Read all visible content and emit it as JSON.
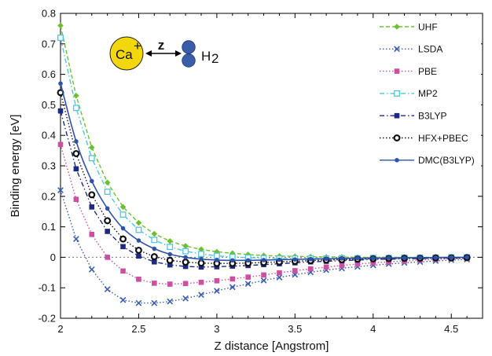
{
  "chart_data": {
    "type": "line",
    "title": "",
    "xlabel": "Z distance [Angstrom]",
    "ylabel": "Binding energy [eV]",
    "xlim": [
      2.0,
      4.7
    ],
    "ylim": [
      -0.2,
      0.8
    ],
    "xticks": [
      2,
      2.5,
      3,
      3.5,
      4,
      4.5
    ],
    "xtick_labels": [
      "2",
      "2.5",
      "3",
      "3.5",
      "4",
      "4.5"
    ],
    "yticks": [
      -0.2,
      -0.1,
      0,
      0.1,
      0.2,
      0.3,
      0.4,
      0.5,
      0.6,
      0.7,
      0.8
    ],
    "ytick_labels": [
      "-0.2",
      "-0.1",
      "0",
      "0.1",
      "0.2",
      "0.3",
      "0.4",
      "0.5",
      "0.6",
      "0.7",
      "0.8"
    ],
    "grid": false,
    "zero_line": true,
    "legend_position": "top-right",
    "inset": {
      "ion_label": "Ca",
      "ion_charge": "+",
      "distance_label": "z",
      "molecule_label": "H",
      "molecule_subscript": "2",
      "ion_color": "#f2d70c",
      "molecule_color": "#3b5ca6"
    },
    "series": [
      {
        "name": "UHF",
        "color": "#6cbf2e",
        "line_style": "dashed",
        "marker": "diamond",
        "x": [
          2.0,
          2.1,
          2.2,
          2.3,
          2.4,
          2.5,
          2.6,
          2.7,
          2.8,
          2.9,
          3.0,
          3.1,
          3.2,
          3.3,
          3.4,
          3.5,
          3.6,
          3.7,
          3.8,
          3.9,
          4.0,
          4.1,
          4.2,
          4.3,
          4.4,
          4.5,
          4.6
        ],
        "y": [
          0.76,
          0.53,
          0.36,
          0.245,
          0.165,
          0.113,
          0.077,
          0.053,
          0.037,
          0.026,
          0.018,
          0.013,
          0.009,
          0.006,
          0.004,
          0.003,
          0.002,
          0.001,
          0.001,
          0.0,
          0.0,
          0.0,
          0.0,
          0.0,
          0.0,
          0.0,
          0.0
        ]
      },
      {
        "name": "LSDA",
        "color": "#3a5dae",
        "line_style": "dotted",
        "marker": "x",
        "x": [
          2.0,
          2.1,
          2.2,
          2.3,
          2.4,
          2.5,
          2.6,
          2.7,
          2.8,
          2.9,
          3.0,
          3.1,
          3.2,
          3.3,
          3.4,
          3.5,
          3.6,
          3.7,
          3.8,
          3.9,
          4.0,
          4.1,
          4.2,
          4.3,
          4.4,
          4.5,
          4.6
        ],
        "y": [
          0.22,
          0.06,
          -0.04,
          -0.105,
          -0.14,
          -0.15,
          -0.15,
          -0.145,
          -0.135,
          -0.123,
          -0.11,
          -0.098,
          -0.087,
          -0.076,
          -0.066,
          -0.057,
          -0.049,
          -0.042,
          -0.036,
          -0.031,
          -0.026,
          -0.022,
          -0.018,
          -0.015,
          -0.012,
          -0.009,
          -0.007
        ]
      },
      {
        "name": "PBE",
        "color": "#cc4fa0",
        "line_style": "dotted",
        "marker": "square",
        "x": [
          2.0,
          2.1,
          2.2,
          2.3,
          2.4,
          2.5,
          2.6,
          2.7,
          2.8,
          2.9,
          3.0,
          3.1,
          3.2,
          3.3,
          3.4,
          3.5,
          3.6,
          3.7,
          3.8,
          3.9,
          4.0,
          4.1,
          4.2,
          4.3,
          4.4,
          4.5,
          4.6
        ],
        "y": [
          0.37,
          0.19,
          0.075,
          0.0,
          -0.045,
          -0.072,
          -0.085,
          -0.088,
          -0.086,
          -0.082,
          -0.077,
          -0.071,
          -0.065,
          -0.058,
          -0.051,
          -0.044,
          -0.038,
          -0.032,
          -0.027,
          -0.022,
          -0.018,
          -0.015,
          -0.012,
          -0.009,
          -0.007,
          -0.005,
          -0.004
        ]
      },
      {
        "name": "MP2",
        "color": "#52c4e0",
        "line_style": "dashdot",
        "marker": "square-open",
        "x": [
          2.0,
          2.1,
          2.2,
          2.3,
          2.4,
          2.5,
          2.6,
          2.7,
          2.8,
          2.9,
          3.0,
          3.1,
          3.2,
          3.3,
          3.4,
          3.5,
          3.6,
          3.7,
          3.8,
          3.9,
          4.0,
          4.1,
          4.2,
          4.3,
          4.4,
          4.5,
          4.6
        ],
        "y": [
          0.72,
          0.49,
          0.325,
          0.215,
          0.14,
          0.09,
          0.057,
          0.034,
          0.02,
          0.011,
          0.005,
          0.001,
          -0.001,
          -0.003,
          -0.004,
          -0.004,
          -0.004,
          -0.004,
          -0.003,
          -0.003,
          -0.002,
          -0.002,
          -0.001,
          -0.001,
          -0.001,
          0.0,
          0.0
        ]
      },
      {
        "name": "B3LYP",
        "color": "#1d2a80",
        "line_style": "dashdot",
        "marker": "square",
        "x": [
          2.0,
          2.1,
          2.2,
          2.3,
          2.4,
          2.5,
          2.6,
          2.7,
          2.8,
          2.9,
          3.0,
          3.1,
          3.2,
          3.3,
          3.4,
          3.5,
          3.6,
          3.7,
          3.8,
          3.9,
          4.0,
          4.1,
          4.2,
          4.3,
          4.4,
          4.5,
          4.6
        ],
        "y": [
          0.48,
          0.29,
          0.165,
          0.085,
          0.035,
          0.004,
          -0.015,
          -0.025,
          -0.03,
          -0.032,
          -0.031,
          -0.029,
          -0.027,
          -0.024,
          -0.021,
          -0.018,
          -0.015,
          -0.013,
          -0.011,
          -0.009,
          -0.007,
          -0.006,
          -0.005,
          -0.004,
          -0.003,
          -0.002,
          -0.002
        ]
      },
      {
        "name": "HFX+PBEC",
        "color": "#111111",
        "line_style": "dotted",
        "marker": "circle-open-thick",
        "x": [
          2.0,
          2.1,
          2.2,
          2.3,
          2.4,
          2.5,
          2.6,
          2.7,
          2.8,
          2.9,
          3.0,
          3.1,
          3.2,
          3.3,
          3.4,
          3.5,
          3.6,
          3.7,
          3.8,
          3.9,
          4.0,
          4.1,
          4.2,
          4.3,
          4.4,
          4.5,
          4.6
        ],
        "y": [
          0.54,
          0.34,
          0.205,
          0.12,
          0.06,
          0.023,
          0.002,
          -0.01,
          -0.016,
          -0.019,
          -0.02,
          -0.02,
          -0.019,
          -0.017,
          -0.015,
          -0.013,
          -0.011,
          -0.009,
          -0.008,
          -0.006,
          -0.005,
          -0.004,
          -0.003,
          -0.003,
          -0.002,
          -0.002,
          -0.001
        ]
      },
      {
        "name": "DMC(B3LYP)",
        "color": "#2f52a8",
        "line_style": "solid",
        "marker": "circle",
        "x": [
          2.0,
          2.1,
          2.2,
          2.3,
          2.4,
          2.5,
          2.6,
          2.7,
          2.8,
          2.9,
          3.0,
          3.1,
          3.2,
          3.3,
          3.4,
          3.5,
          3.6,
          3.7,
          3.8,
          3.9,
          4.0,
          4.1,
          4.2,
          4.3,
          4.4,
          4.5,
          4.6
        ],
        "y": [
          0.57,
          0.38,
          0.25,
          0.16,
          0.095,
          0.055,
          0.028,
          0.01,
          0.0,
          -0.006,
          -0.009,
          -0.01,
          -0.01,
          -0.009,
          -0.008,
          -0.007,
          -0.006,
          -0.005,
          -0.004,
          -0.003,
          -0.003,
          -0.002,
          -0.002,
          -0.001,
          -0.001,
          0.0,
          0.0
        ]
      }
    ]
  }
}
